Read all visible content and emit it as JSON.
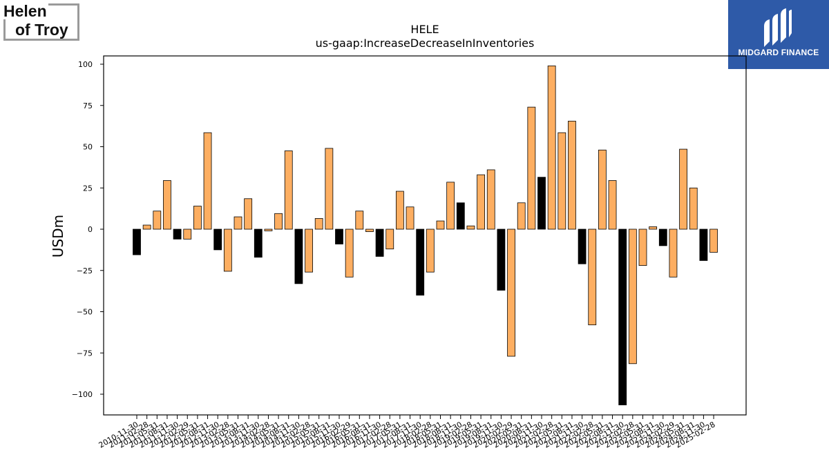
{
  "logos": {
    "left_line1": "Helen",
    "left_line2": "of Troy",
    "right_brand": "MIDGARD FINANCE"
  },
  "colors": {
    "positive_bar": "#fdae61",
    "highlight_bar": "#000000",
    "brand_blue": "#2e5aa8"
  },
  "chart_data": {
    "type": "bar",
    "title": "HELE",
    "subtitle": "us-gaap:IncreaseDecreaseInInventories",
    "ylabel": "USDm",
    "xlabel": "",
    "ylim": [
      -112,
      105
    ],
    "yticks": [
      100,
      75,
      50,
      25,
      0,
      -25,
      -50,
      -75,
      -100
    ],
    "ytick_labels": [
      "100",
      "75",
      "50",
      "25",
      "0",
      "−25",
      "−50",
      "−75",
      "−100"
    ],
    "grid": false,
    "legend": "none",
    "categories": [
      "2010-11-30",
      "2011-02-28",
      "2011-05-31",
      "2011-08-31",
      "2011-11-30",
      "2012-02-29",
      "2012-05-31",
      "2012-08-31",
      "2012-11-30",
      "2013-02-28",
      "2013-05-31",
      "2013-08-31",
      "2013-11-30",
      "2014-02-28",
      "2014-05-31",
      "2014-08-31",
      "2014-11-30",
      "2015-02-28",
      "2015-05-31",
      "2015-08-31",
      "2015-11-30",
      "2016-02-29",
      "2016-05-31",
      "2016-08-31",
      "2016-11-30",
      "2017-02-28",
      "2017-05-31",
      "2017-08-31",
      "2017-11-30",
      "2018-02-28",
      "2018-05-31",
      "2018-08-31",
      "2018-11-30",
      "2019-02-28",
      "2019-05-31",
      "2019-08-31",
      "2019-11-30",
      "2020-02-29",
      "2020-05-31",
      "2020-08-31",
      "2020-11-30",
      "2021-02-28",
      "2021-05-31",
      "2021-08-31",
      "2021-11-30",
      "2022-02-28",
      "2022-05-31",
      "2022-08-31",
      "2022-11-30",
      "2023-02-28",
      "2023-05-31",
      "2023-08-31",
      "2023-11-30",
      "2024-02-29",
      "2024-05-31",
      "2024-08-31",
      "2024-11-30",
      "2025-02-28"
    ],
    "values": [
      -15.5,
      2.5,
      11,
      29.5,
      -6,
      -6,
      14,
      58.5,
      -12.5,
      -25.5,
      7.5,
      18.5,
      -17,
      -1,
      9.5,
      47.5,
      -33,
      -26,
      6.5,
      49,
      -9,
      -29,
      11,
      -1.5,
      -16.5,
      -12,
      23,
      13.5,
      -40,
      -26,
      5,
      28.5,
      16,
      2,
      33,
      36,
      -37,
      -77,
      16,
      74,
      31.5,
      99,
      58.5,
      65.5,
      -21,
      -58,
      48,
      29.5,
      -106.5,
      -81.5,
      -22,
      1.5,
      -10,
      -29,
      48.5,
      25,
      -19,
      -14
    ],
    "highlighted": [
      true,
      false,
      false,
      false,
      true,
      false,
      false,
      false,
      true,
      false,
      false,
      false,
      true,
      false,
      false,
      false,
      true,
      false,
      false,
      false,
      true,
      false,
      false,
      false,
      true,
      false,
      false,
      false,
      true,
      false,
      false,
      false,
      true,
      false,
      false,
      false,
      true,
      false,
      false,
      false,
      true,
      false,
      false,
      false,
      true,
      false,
      false,
      false,
      true,
      false,
      false,
      false,
      true,
      false,
      false,
      false,
      true,
      false
    ]
  }
}
